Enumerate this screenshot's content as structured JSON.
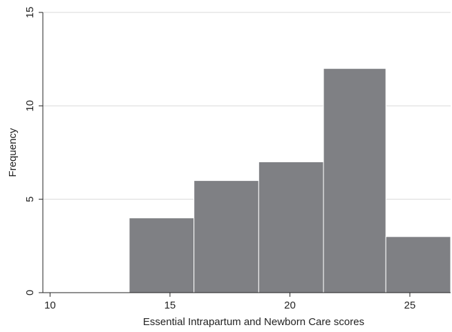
{
  "chart_data": {
    "type": "bar",
    "subtype": "histogram",
    "title": "",
    "xlabel": "Essential Intrapartum and Newborn Care scores",
    "ylabel": "Frequency",
    "bins": [
      {
        "start": 13.3,
        "end": 16.0,
        "value": 4
      },
      {
        "start": 16.0,
        "end": 18.7,
        "value": 6
      },
      {
        "start": 18.7,
        "end": 21.4,
        "value": 7
      },
      {
        "start": 21.4,
        "end": 24.0,
        "value": 12
      },
      {
        "start": 24.0,
        "end": 26.7,
        "value": 3
      }
    ],
    "xlim": [
      9.7,
      26.7
    ],
    "ylim": [
      0,
      15
    ],
    "xticks": [
      "10",
      "15",
      "20",
      "25"
    ],
    "yticks": [
      "0",
      "5",
      "10",
      "15"
    ],
    "grid": true,
    "legend": "none",
    "bar_color": "#7f8084"
  }
}
